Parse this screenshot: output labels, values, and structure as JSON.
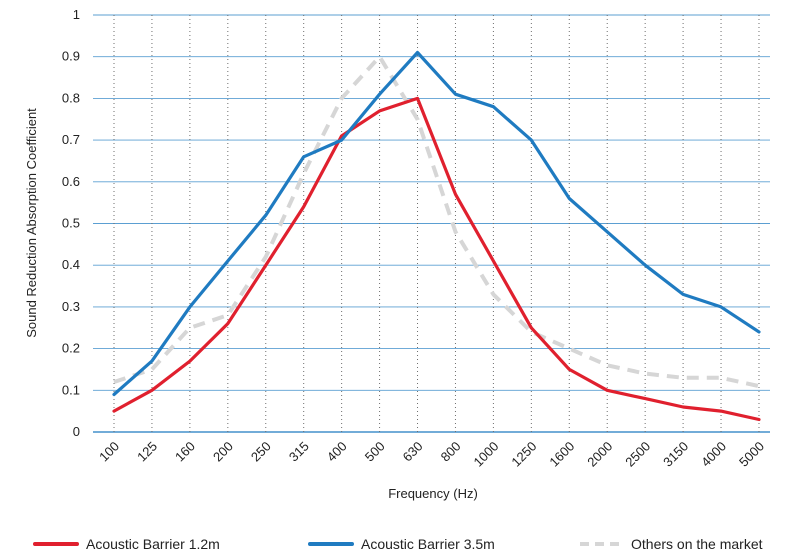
{
  "chart_data": {
    "type": "line",
    "xlabel": "Frequency (Hz)",
    "ylabel": "Sound Reduction Absorption  Coefficient",
    "categories": [
      "100",
      "125",
      "160",
      "200",
      "250",
      "315",
      "400",
      "500",
      "630",
      "800",
      "1000",
      "1250",
      "1600",
      "2000",
      "2500",
      "3150",
      "4000",
      "5000"
    ],
    "ylim": [
      0,
      1
    ],
    "yticks": [
      "0",
      "0.1",
      "0.2",
      "0.3",
      "0.4",
      "0.5",
      "0.6",
      "0.7",
      "0.8",
      "0.9",
      "1"
    ],
    "grid": {
      "horizontal": true,
      "vertical_dotted": true
    },
    "legend_position": "bottom",
    "series": [
      {
        "name": "Acoustic Barrier 1.2m",
        "color": "#e0202e",
        "style": "solid",
        "values": [
          0.05,
          0.1,
          0.17,
          0.26,
          0.4,
          0.54,
          0.71,
          0.77,
          0.8,
          0.57,
          0.41,
          0.25,
          0.15,
          0.1,
          0.08,
          0.06,
          0.05,
          0.03
        ]
      },
      {
        "name": "Acoustic Barrier 3.5m",
        "color": "#1f7bc1",
        "style": "solid",
        "values": [
          0.09,
          0.17,
          0.3,
          0.41,
          0.52,
          0.66,
          0.7,
          0.81,
          0.91,
          0.81,
          0.78,
          0.7,
          0.56,
          0.48,
          0.4,
          0.33,
          0.3,
          0.24
        ]
      },
      {
        "name": "Others on the market",
        "color": "#d6d6d6",
        "style": "dashed",
        "values": [
          0.12,
          0.15,
          0.25,
          0.28,
          0.42,
          0.62,
          0.8,
          0.9,
          0.75,
          0.48,
          0.33,
          0.24,
          0.2,
          0.16,
          0.14,
          0.13,
          0.13,
          0.11
        ]
      }
    ]
  }
}
